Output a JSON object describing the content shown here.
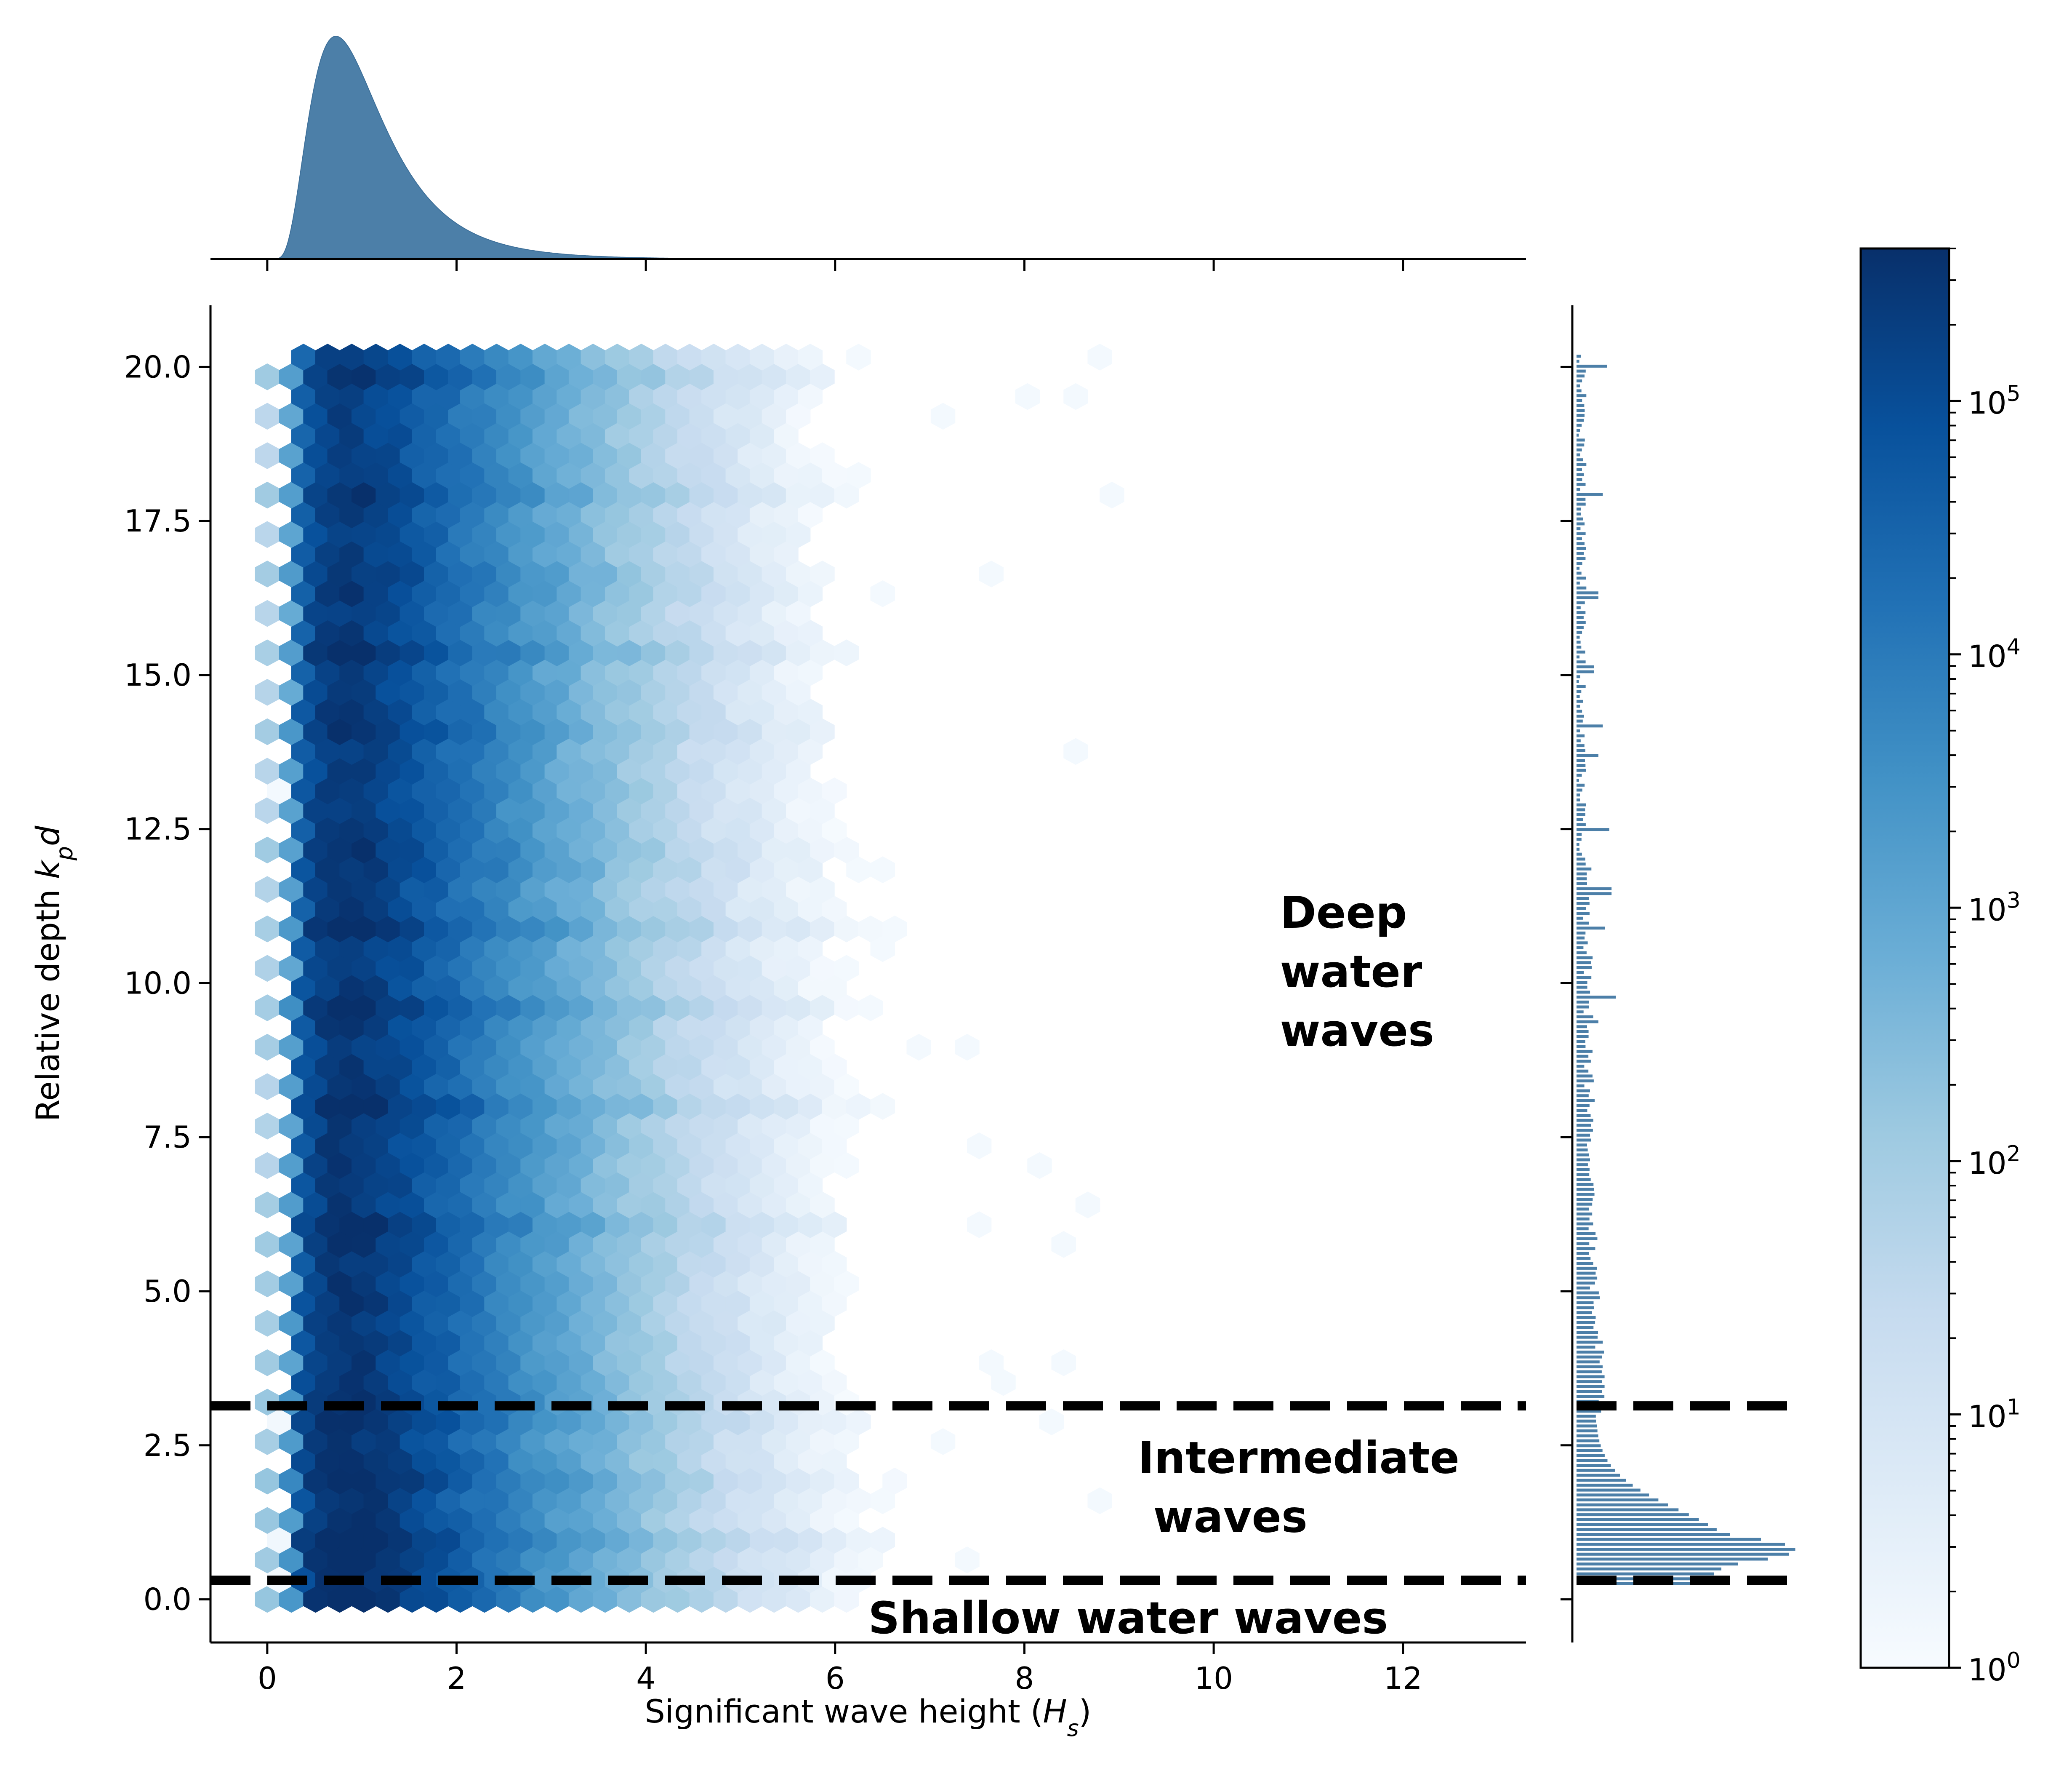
{
  "chart_data": {
    "type": "hexbin",
    "xlabel": "Significant wave height (H_s)",
    "xlabel_prefix": "Significant wave height (",
    "xlabel_main": "H",
    "xlabel_sub": "s",
    "xlabel_suffix": ")",
    "ylabel_prefix": "Relative depth ",
    "ylabel_main": "k",
    "ylabel_sub": "p",
    "ylabel_suffix": "d",
    "xlim": [
      -0.6,
      13.3
    ],
    "ylim": [
      -0.7,
      21.0
    ],
    "x_ticks": [
      0,
      2,
      4,
      6,
      8,
      10,
      12
    ],
    "x_tick_labels": [
      "0",
      "2",
      "4",
      "6",
      "8",
      "10",
      "12"
    ],
    "y_ticks": [
      0,
      2.5,
      5,
      7.5,
      10,
      12.5,
      15,
      17.5,
      20
    ],
    "y_tick_labels": [
      "0.0",
      "2.5",
      "5.0",
      "7.5",
      "10.0",
      "12.5",
      "15.0",
      "17.5",
      "20.0"
    ],
    "colormap": "Blues",
    "color_scale": "log",
    "colorbar": {
      "range": [
        1,
        400000
      ],
      "ticks": [
        1,
        10,
        100,
        1000,
        10000,
        100000
      ],
      "labels": [
        {
          "base": "10",
          "exp": "0"
        },
        {
          "base": "10",
          "exp": "1"
        },
        {
          "base": "10",
          "exp": "2"
        },
        {
          "base": "10",
          "exp": "3"
        },
        {
          "base": "10",
          "exp": "4"
        },
        {
          "base": "10",
          "exp": "5"
        }
      ]
    },
    "thresholds": [
      {
        "y": 3.14,
        "style": "dashed",
        "color": "#000000"
      },
      {
        "y": 0.31,
        "style": "dashed",
        "color": "#000000"
      }
    ],
    "annotations": [
      {
        "lines": [
          "Deep",
          "water",
          "waves"
        ],
        "x": 10.7,
        "y": 10.9
      },
      {
        "lines": [
          "Intermediate",
          " waves"
        ],
        "x": 9.2,
        "y": 2.05
      },
      {
        "lines": [
          "Shallow water waves"
        ],
        "x": 6.35,
        "y": -0.55
      }
    ],
    "hexbin_model": {
      "x_extent": [
        0,
        13
      ],
      "y_extent": [
        0,
        20.2
      ],
      "x_mode": 0.8,
      "peak_count": 380000,
      "dense_bands": [
        0.9,
        2.0,
        3.0,
        6.0,
        8.0,
        9.6,
        10.9,
        12.0,
        14.2,
        15.4,
        16.5,
        18.0,
        19.8
      ]
    },
    "top_histogram": {
      "x_mode": 0.8,
      "x_start": 0.1,
      "x_end": 5.0,
      "color": "#4c7fa8"
    },
    "right_histogram": {
      "peak_y": 0.8,
      "color": "#4c7fa8"
    }
  }
}
